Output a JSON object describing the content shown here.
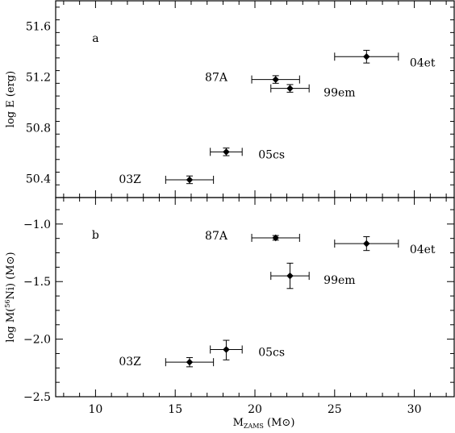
{
  "chart_data": {
    "type": "scatter",
    "xlabel": {
      "main": "M",
      "sub": "ZAMS",
      "unit_open": " (M",
      "unit_close": ")"
    },
    "xlim": [
      7.5,
      32.5
    ],
    "xticks": [
      10,
      15,
      20,
      25,
      30
    ],
    "x_tick_labels": [
      "10",
      "15",
      "20",
      "25",
      "30"
    ],
    "panels": [
      {
        "tag": "a",
        "ylabel": "log E (erg)",
        "ylim": [
          50.25,
          51.8
        ],
        "yticks": [
          50.4,
          50.8,
          51.2,
          51.6
        ],
        "y_tick_labels": [
          "50.4",
          "50.8",
          "51.2",
          "51.6"
        ],
        "points": [
          {
            "name": "03Z",
            "x": 15.9,
            "xlo": 14.4,
            "xhi": 17.4,
            "y": 50.39,
            "ylo": 50.36,
            "yhi": 50.42
          },
          {
            "name": "05cs",
            "x": 18.2,
            "xlo": 17.2,
            "xhi": 19.2,
            "y": 50.61,
            "ylo": 50.58,
            "yhi": 50.64
          },
          {
            "name": "87A",
            "x": 21.3,
            "xlo": 19.8,
            "xhi": 22.8,
            "y": 51.18,
            "ylo": 51.15,
            "yhi": 51.21
          },
          {
            "name": "99em",
            "x": 22.2,
            "xlo": 21.0,
            "xhi": 23.4,
            "y": 51.11,
            "ylo": 51.08,
            "yhi": 51.14
          },
          {
            "name": "04et",
            "x": 27.0,
            "xlo": 25.0,
            "xhi": 29.0,
            "y": 51.36,
            "ylo": 51.31,
            "yhi": 51.41
          }
        ]
      },
      {
        "tag": "b",
        "ylabel": {
          "pre": "log M(",
          "sup": "56",
          "mid": "Ni)  (M",
          "post": ")"
        },
        "ylim": [
          -2.5,
          -0.77
        ],
        "yticks": [
          -2.5,
          -2.0,
          -1.5,
          -1.0
        ],
        "y_tick_labels": [
          "−2.5",
          "−2.0",
          "−1.5",
          "−1.0"
        ],
        "points": [
          {
            "name": "03Z",
            "x": 15.9,
            "xlo": 14.4,
            "xhi": 17.4,
            "y": -2.2,
            "ylo": -2.24,
            "yhi": -2.16
          },
          {
            "name": "05cs",
            "x": 18.2,
            "xlo": 17.2,
            "xhi": 19.2,
            "y": -2.09,
            "ylo": -2.18,
            "yhi": -2.01
          },
          {
            "name": "87A",
            "x": 21.3,
            "xlo": 19.8,
            "xhi": 22.8,
            "y": -1.12,
            "ylo": -1.14,
            "yhi": -1.1
          },
          {
            "name": "99em",
            "x": 22.2,
            "xlo": 21.0,
            "xhi": 23.4,
            "y": -1.45,
            "ylo": -1.56,
            "yhi": -1.34
          },
          {
            "name": "04et",
            "x": 27.0,
            "xlo": 25.0,
            "xhi": 29.0,
            "y": -1.17,
            "ylo": -1.23,
            "yhi": -1.11
          }
        ]
      }
    ]
  }
}
